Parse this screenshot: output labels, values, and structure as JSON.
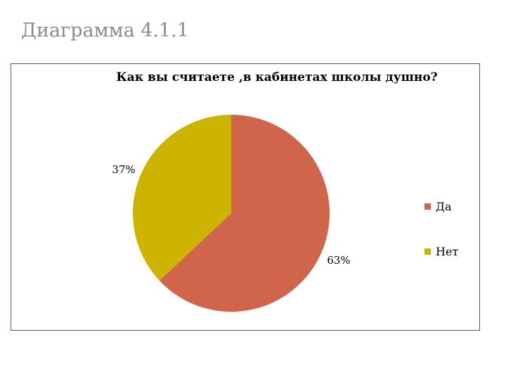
{
  "slide": {
    "title": "Диаграмма 4.1.1"
  },
  "chart_data": {
    "type": "pie",
    "title": "Как вы считаете ,в кабинетах школы душно?",
    "categories": [
      "Да",
      "Нет"
    ],
    "values": [
      63,
      37
    ],
    "data_labels": [
      "63%",
      "37%"
    ],
    "colors": [
      "#d1654b",
      "#ccb400"
    ],
    "legend": {
      "position": "right",
      "entries": [
        "Да",
        "Нет"
      ]
    }
  }
}
